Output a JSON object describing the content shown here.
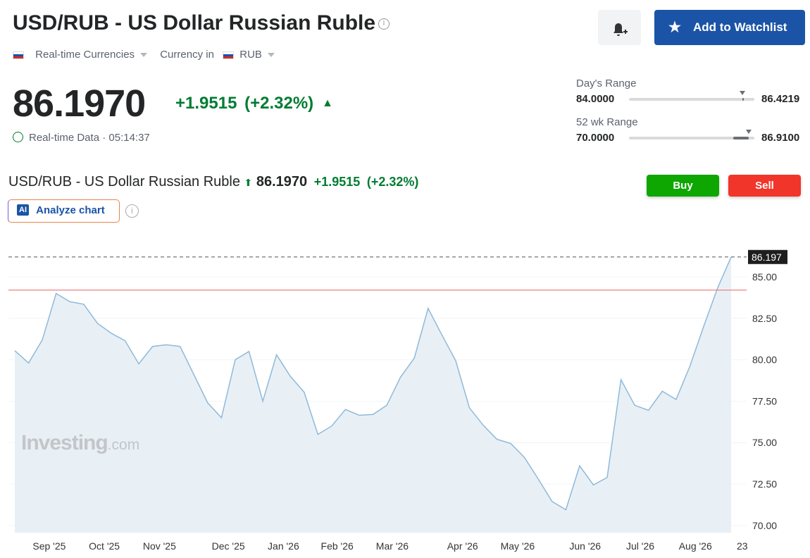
{
  "header": {
    "title": "USD/RUB - US Dollar Russian Ruble",
    "market": "Real-time Currencies",
    "currency_label": "Currency in",
    "currency": "RUB",
    "watchlist_button": "Add to Watchlist"
  },
  "quote": {
    "price": "86.1970",
    "change": "+1.9515",
    "change_pct": "(+2.32%)",
    "data_label": "Real-time Data",
    "time": "05:14:37"
  },
  "ranges": [
    {
      "label": "Day's Range",
      "low": "84.0000",
      "high": "86.4219"
    },
    {
      "label": "52 wk Range",
      "low": "70.0000",
      "high": "86.9100"
    }
  ],
  "chart_header": {
    "title": "USD/RUB - US Dollar Russian Ruble",
    "price": "86.1970",
    "change": "+1.9515",
    "change_pct": "(+2.32%)",
    "buy": "Buy",
    "sell": "Sell",
    "ai_badge": "AI",
    "analyze": "Analyze chart"
  },
  "watermark": {
    "brand": "Investing",
    "suffix": ".com"
  },
  "chart": {
    "type": "area",
    "color": "#8fb9d9",
    "values": [
      80.55,
      79.8,
      81.2,
      84.0,
      83.5,
      83.35,
      82.2,
      81.6,
      81.15,
      79.75,
      80.8,
      80.9,
      80.8,
      79.1,
      77.4,
      76.5,
      80.0,
      80.5,
      77.5,
      80.3,
      79.0,
      78.05,
      75.5,
      76.0,
      77.0,
      76.65,
      76.7,
      77.25,
      78.95,
      80.1,
      83.1,
      81.5,
      79.95,
      77.1,
      76.05,
      75.2,
      74.95,
      74.1,
      72.8,
      71.45,
      70.95,
      73.6,
      72.45,
      72.9,
      78.8,
      77.25,
      76.95,
      78.1,
      77.6,
      79.6,
      82.0,
      84.3,
      86.2
    ],
    "last_value": 86.197,
    "reference_line": 84.2,
    "xlim": [
      -0.46,
      53.12
    ],
    "ylim": [
      69.57,
      87.25
    ],
    "yticks": [
      {
        "value": 85,
        "label": "85.00"
      },
      {
        "value": 82.5,
        "label": "82.50"
      },
      {
        "value": 80,
        "label": "80.00"
      },
      {
        "value": 77.5,
        "label": "77.50"
      },
      {
        "value": 75,
        "label": "75.00"
      },
      {
        "value": 72.5,
        "label": "72.50"
      },
      {
        "value": 70,
        "label": "70.00"
      }
    ],
    "xticks": [
      {
        "value": 2.5,
        "label": "Sep '25"
      },
      {
        "value": 6.5,
        "label": "Oct '25"
      },
      {
        "value": 10.5,
        "label": "Nov '25"
      },
      {
        "value": 15.5,
        "label": "Dec '25"
      },
      {
        "value": 19.5,
        "label": "Jan '26"
      },
      {
        "value": 23.4,
        "label": "Feb '26"
      },
      {
        "value": 27.4,
        "label": "Mar '26"
      },
      {
        "value": 32.5,
        "label": "Apr '26"
      },
      {
        "value": 36.5,
        "label": "May '26"
      },
      {
        "value": 41.4,
        "label": "Jun '26"
      },
      {
        "value": 45.4,
        "label": "Jul '26"
      },
      {
        "value": 49.4,
        "label": "Aug '26"
      },
      {
        "value": 52.8,
        "label": "23"
      }
    ],
    "grid": true
  }
}
